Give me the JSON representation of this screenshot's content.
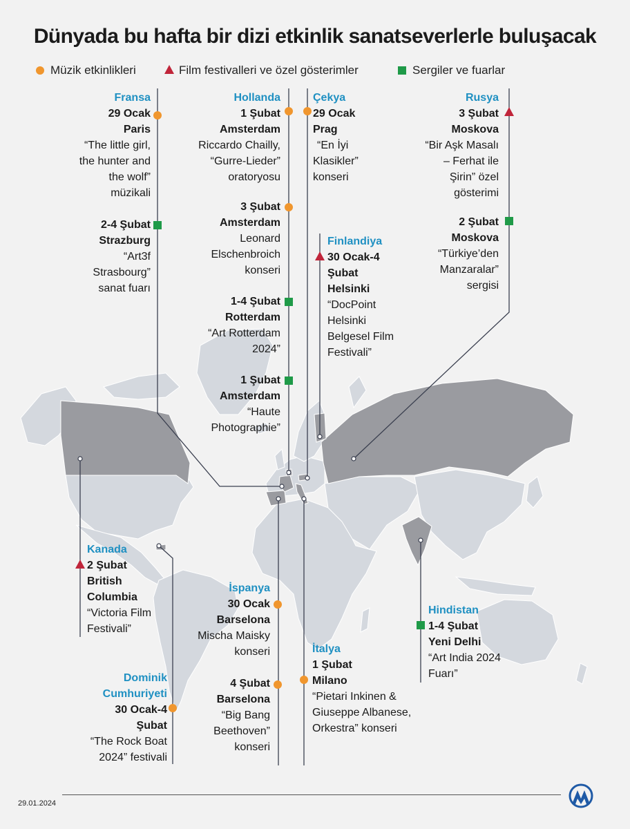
{
  "title": "Dünyada bu hafta bir dizi etkinlik sanatseverlerle buluşacak",
  "legend": {
    "music": "Müzik etkinlikleri",
    "film": "Film festivalleri ve özel gösterimler",
    "exhibition": "Sergiler ve fuarlar"
  },
  "colors": {
    "music": "#f0962e",
    "film": "#c0253a",
    "exhibition": "#1f9a48",
    "country_label": "#1f90c2",
    "highlight_land": "#9a9ba0",
    "land": "#d4d8de"
  },
  "events": {
    "fransa": {
      "country": "Fransa",
      "e1": {
        "date": "29 Ocak",
        "city": "Paris",
        "d1": "“The little girl,",
        "d2": "the hunter and",
        "d3": "the wolf”",
        "d4": "müzikali"
      },
      "e2": {
        "date": "2-4 Şubat",
        "city": "Strazburg",
        "d1": "“Art3f",
        "d2": "Strasbourg”",
        "d3": "sanat fuarı"
      }
    },
    "hollanda": {
      "country": "Hollanda",
      "e1": {
        "date": "1 Şubat",
        "city": "Amsterdam",
        "d1": "Riccardo Chailly,",
        "d2": "“Gurre-Lieder”",
        "d3": "oratoryosu"
      },
      "e2": {
        "date": "3 Şubat",
        "city": "Amsterdam",
        "d1": "Leonard",
        "d2": "Elschenbroich",
        "d3": "konseri"
      },
      "e3": {
        "date": "1-4 Şubat",
        "city": "Rotterdam",
        "d1": "“Art Rotterdam",
        "d2": "2024”"
      },
      "e4": {
        "date": "1 Şubat",
        "city": "Amsterdam",
        "d1": "“Haute",
        "d2": "Photographie”"
      }
    },
    "cekya": {
      "country": "Çekya",
      "date": "29 Ocak",
      "city": "Prag",
      "d1": "“En İyi",
      "d2": "Klasikler”",
      "d3": "konseri"
    },
    "finlandiya": {
      "country": "Finlandiya",
      "date1": "30 Ocak-4",
      "date2": "Şubat",
      "city": "Helsinki",
      "d1": "“DocPoint",
      "d2": "Helsinki",
      "d3": "Belgesel Film",
      "d4": "Festivali”"
    },
    "rusya": {
      "country": "Rusya",
      "e1": {
        "date": "3 Şubat",
        "city": "Moskova",
        "d1": "“Bir Aşk Masalı",
        "d2": "– Ferhat ile",
        "d3": "Şirin” özel",
        "d4": "gösterimi"
      },
      "e2": {
        "date": "2 Şubat",
        "city": "Moskova",
        "d1": "“Türkiye’den",
        "d2": "Manzaralar”",
        "d3": "sergisi"
      }
    },
    "kanada": {
      "country": "Kanada",
      "date": "2 Şubat",
      "city1": "British",
      "city2": "Columbia",
      "d1": "“Victoria Film",
      "d2": "Festivali”"
    },
    "dominik": {
      "country1": "Dominik",
      "country2": "Cumhuriyeti",
      "date1": "30 Ocak-4",
      "date2": "Şubat",
      "d1": "“The Rock Boat",
      "d2": "2024” festivali"
    },
    "ispanya": {
      "country": "İspanya",
      "e1": {
        "date": "30 Ocak",
        "city": "Barselona",
        "d1": "Mischa Maisky",
        "d2": "konseri"
      },
      "e2": {
        "date": "4 Şubat",
        "city": "Barselona",
        "d1": "“Big Bang",
        "d2": "Beethoven”",
        "d3": "konseri"
      }
    },
    "italya": {
      "country": "İtalya",
      "date": "1 Şubat",
      "city": "Milano",
      "d1": "“Pietari Inkinen &",
      "d2": "Giuseppe Albanese,",
      "d3": "Orkestra” konseri"
    },
    "hindistan": {
      "country": "Hindistan",
      "date": "1-4 Şubat",
      "city": "Yeni Delhi",
      "d1": "“Art India 2024",
      "d2": "Fuarı”"
    }
  },
  "footer": {
    "date": "29.01.2024",
    "logo": "AA"
  }
}
